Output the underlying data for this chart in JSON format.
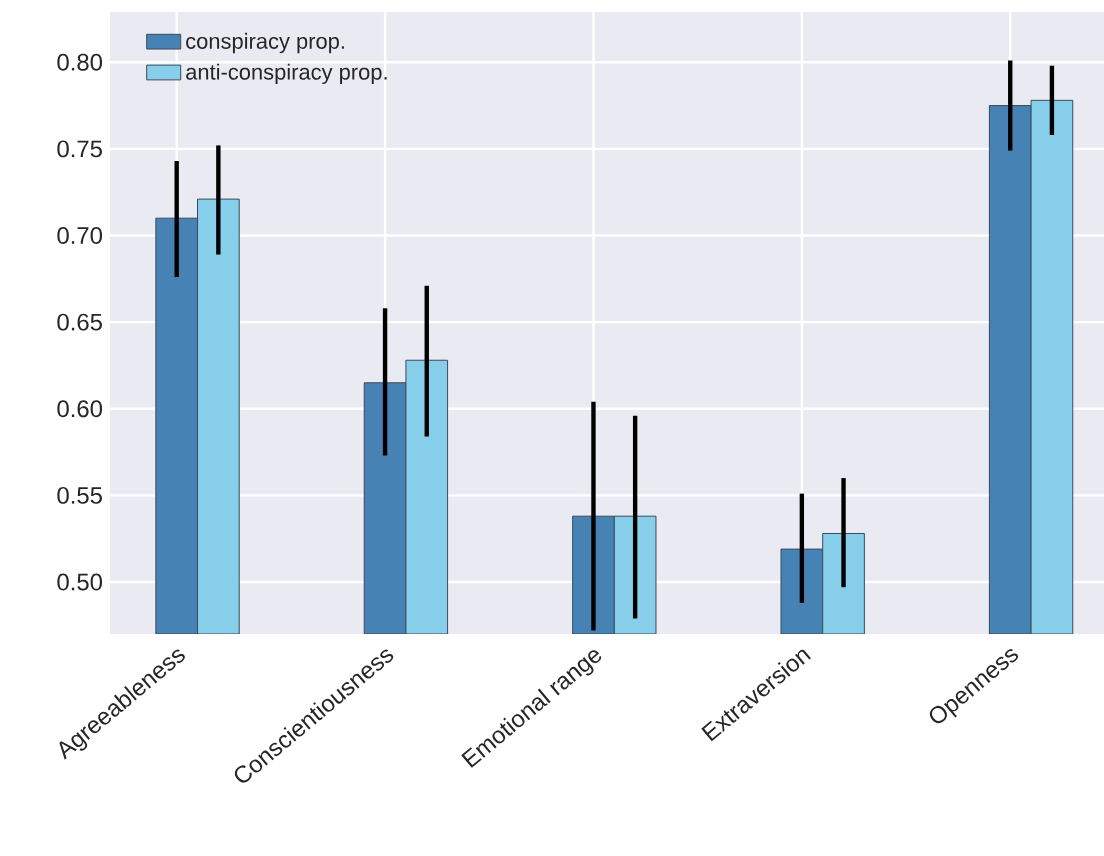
{
  "chart_data": {
    "type": "bar",
    "categories": [
      "Agreeableness",
      "Conscientiousness",
      "Emotional range",
      "Extraversion",
      "Openness"
    ],
    "series": [
      {
        "name": "conspiracy prop.",
        "color": "#4682b4",
        "values": [
          0.71,
          0.615,
          0.538,
          0.519,
          0.775
        ],
        "errors": [
          [
            0.676,
            0.743
          ],
          [
            0.573,
            0.658
          ],
          [
            0.472,
            0.604
          ],
          [
            0.488,
            0.551
          ],
          [
            0.749,
            0.801
          ]
        ]
      },
      {
        "name": "anti-conspiracy prop.",
        "color": "#87ceeb",
        "values": [
          0.721,
          0.628,
          0.538,
          0.528,
          0.778
        ],
        "errors": [
          [
            0.689,
            0.752
          ],
          [
            0.584,
            0.671
          ],
          [
            0.479,
            0.596
          ],
          [
            0.497,
            0.56
          ],
          [
            0.758,
            0.798
          ]
        ]
      }
    ],
    "ylim": [
      0.47,
      0.829
    ],
    "yticks": [
      {
        "value": 0.5,
        "label": "0.50"
      },
      0.55,
      {
        "value": 0.6,
        "label": "0.60"
      },
      0.65,
      {
        "value": 0.7,
        "label": "0.70"
      },
      0.75,
      {
        "value": 0.8,
        "label": "0.80"
      }
    ],
    "grid": true,
    "legend": "top left"
  }
}
